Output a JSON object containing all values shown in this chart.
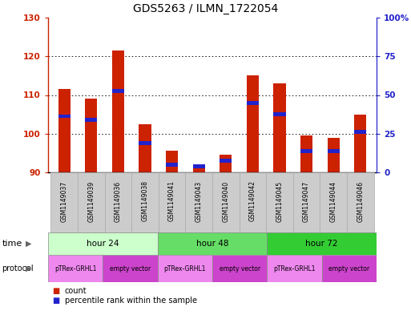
{
  "title": "GDS5263 / ILMN_1722054",
  "samples": [
    "GSM1149037",
    "GSM1149039",
    "GSM1149036",
    "GSM1149038",
    "GSM1149041",
    "GSM1149043",
    "GSM1149040",
    "GSM1149042",
    "GSM1149045",
    "GSM1149047",
    "GSM1149044",
    "GSM1149046"
  ],
  "red_values": [
    111.5,
    109.0,
    121.5,
    102.5,
    95.5,
    91.0,
    94.5,
    115.0,
    113.0,
    99.5,
    99.0,
    105.0
  ],
  "blue_values": [
    104.0,
    103.0,
    110.5,
    97.0,
    91.5,
    91.0,
    92.5,
    107.5,
    104.5,
    95.0,
    95.0,
    100.0
  ],
  "y_min": 90,
  "y_max": 130,
  "y_ticks": [
    90,
    100,
    110,
    120,
    130
  ],
  "y_right_ticks": [
    0,
    25,
    50,
    75,
    100
  ],
  "y_right_labels": [
    "0",
    "25",
    "50",
    "75",
    "100%"
  ],
  "time_groups": [
    {
      "label": "hour 24",
      "start": 0,
      "end": 4,
      "color": "#ccffcc"
    },
    {
      "label": "hour 48",
      "start": 4,
      "end": 8,
      "color": "#66dd66"
    },
    {
      "label": "hour 72",
      "start": 8,
      "end": 12,
      "color": "#33cc33"
    }
  ],
  "protocol_groups": [
    {
      "label": "pTRex-GRHL1",
      "start": 0,
      "end": 2,
      "color": "#ee88ee"
    },
    {
      "label": "empty vector",
      "start": 2,
      "end": 4,
      "color": "#cc44cc"
    },
    {
      "label": "pTRex-GRHL1",
      "start": 4,
      "end": 6,
      "color": "#ee88ee"
    },
    {
      "label": "empty vector",
      "start": 6,
      "end": 8,
      "color": "#cc44cc"
    },
    {
      "label": "pTRex-GRHL1",
      "start": 8,
      "end": 10,
      "color": "#ee88ee"
    },
    {
      "label": "empty vector",
      "start": 10,
      "end": 12,
      "color": "#cc44cc"
    }
  ],
  "bar_color": "#cc2200",
  "blue_color": "#2222cc",
  "bar_width": 0.45,
  "grid_color": "#000000",
  "bg_color": "#ffffff",
  "left_axis_color": "#cc2200",
  "right_axis_color": "#2222cc",
  "title_fontsize": 10
}
